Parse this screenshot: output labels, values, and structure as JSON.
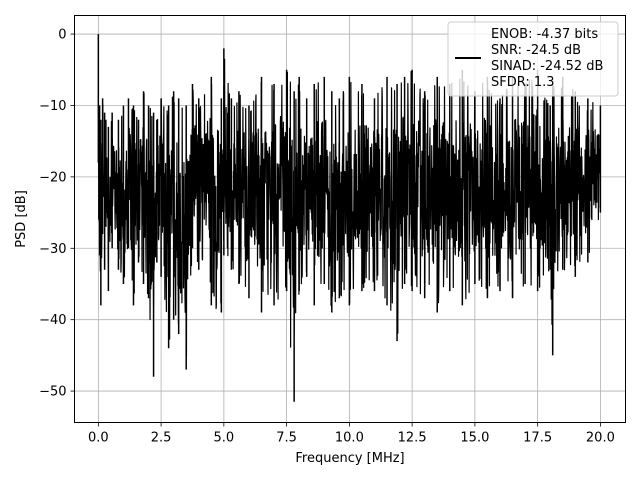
{
  "chart_data": {
    "type": "line",
    "title": "",
    "xlabel": "Frequency [MHz]",
    "ylabel": "PSD [dB]",
    "xlim": [
      -0.95,
      21.0
    ],
    "ylim": [
      -54.4,
      2.6
    ],
    "x_ticks": [
      0.0,
      2.5,
      5.0,
      7.5,
      10.0,
      12.5,
      15.0,
      17.5,
      20.0
    ],
    "x_tick_labels": [
      "0.0",
      "2.5",
      "5.0",
      "7.5",
      "10.0",
      "12.5",
      "15.0",
      "17.5",
      "20.0"
    ],
    "y_ticks": [
      0,
      -10,
      -20,
      -30,
      -40,
      -50
    ],
    "y_tick_labels": [
      "0",
      "−10",
      "−20",
      "−30",
      "−40",
      "−50"
    ],
    "grid": true,
    "legend_position": "top-right",
    "legend_lines": [
      "ENOB: -4.37 bits",
      "SNR: -24.5 dB",
      "SINAD: -24.52 dB",
      "SFDR: 1.3"
    ],
    "series": [
      {
        "color": "#000000",
        "x": [
          0.0,
          0.02,
          0.05,
          0.1,
          0.17,
          0.25,
          0.3,
          0.4,
          0.55,
          0.8,
          1.0,
          1.2,
          1.4,
          1.6,
          1.8,
          2.0,
          2.2,
          2.33,
          2.5,
          2.8,
          3.0,
          3.2,
          3.5,
          3.75,
          4.0,
          4.5,
          4.9,
          5.0,
          5.3,
          5.6,
          6.0,
          6.5,
          7.0,
          7.5,
          7.8,
          8.0,
          8.3,
          8.6,
          9.0,
          9.3,
          9.6,
          10.0,
          10.5,
          11.0,
          11.5,
          11.9,
          12.2,
          12.5,
          13.0,
          13.5,
          14.0,
          14.5,
          15.0,
          15.5,
          16.0,
          16.5,
          17.0,
          17.5,
          18.0,
          18.1,
          18.5,
          19.0,
          19.5,
          20.0
        ],
        "y_upper": [
          0.0,
          -15,
          -10,
          -12,
          -9,
          -11,
          -12,
          -13,
          -11,
          -12,
          -10,
          -9,
          -10,
          -12,
          -8,
          -10,
          -11,
          -12,
          -9,
          -10,
          -8,
          -9,
          -10,
          -7,
          -9,
          -6,
          -9,
          -2,
          -9,
          -8,
          -10,
          -6,
          -7,
          -5,
          -8,
          -6,
          -9,
          -7,
          -6,
          -8,
          -9,
          -6,
          -7,
          -9,
          -6,
          -7,
          -6,
          -5,
          -8,
          -6,
          -7,
          -5,
          -8,
          -6,
          -9,
          -6,
          -7,
          -5,
          -10,
          -7,
          -6,
          -8,
          -9,
          -10
        ],
        "y_lower": [
          -18,
          -26,
          -31,
          -38,
          -28,
          -33,
          -27,
          -36,
          -30,
          -33,
          -35,
          -30,
          -38,
          -32,
          -35,
          -37,
          -48,
          -32,
          -34,
          -44,
          -40,
          -42,
          -47,
          -30,
          -33,
          -38,
          -39,
          -31,
          -33,
          -35,
          -37,
          -39,
          -38,
          -36,
          -51.5,
          -36,
          -34,
          -38,
          -35,
          -39,
          -37,
          -38,
          -36,
          -36,
          -38,
          -43,
          -35,
          -36,
          -37,
          -39,
          -36,
          -38,
          -35,
          -37,
          -36,
          -37,
          -35,
          -36,
          -33,
          -45,
          -33,
          -34,
          -32,
          -25
        ]
      }
    ]
  }
}
